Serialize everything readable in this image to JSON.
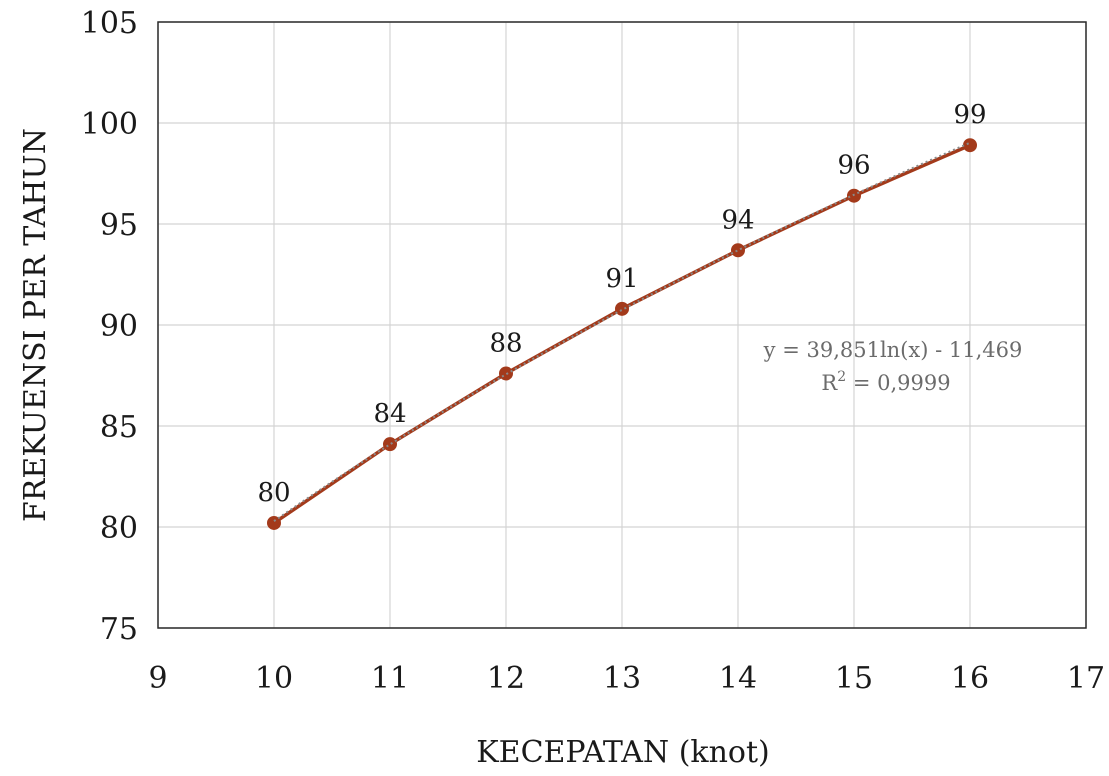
{
  "chart_data": {
    "type": "scatter",
    "title": "",
    "xlabel": "KECEPATAN (knot)",
    "ylabel": "FREKUENSI PER TAHUN",
    "xlim": [
      9,
      17
    ],
    "ylim": [
      75,
      105
    ],
    "xticks": [
      9,
      10,
      11,
      12,
      13,
      14,
      15,
      16,
      17
    ],
    "yticks": [
      75,
      80,
      85,
      90,
      95,
      100,
      105
    ],
    "grid": true,
    "series": [
      {
        "x": [
          10,
          11,
          12,
          13,
          14,
          15,
          16
        ],
        "y": [
          80.2,
          84.1,
          87.6,
          90.8,
          93.7,
          96.4,
          98.9
        ],
        "data_labels": [
          "80",
          "84",
          "88",
          "91",
          "94",
          "96",
          "99"
        ],
        "color": "#a33a1b",
        "markers": true,
        "line": "solid"
      }
    ],
    "trendline": {
      "type": "logarithmic",
      "a": 39.851,
      "b": -11.469,
      "equation": "y = 39,851ln(x) - 11,469",
      "r2_prefix": "R",
      "r2_sup": "2",
      "r2_value": " = 0,9999",
      "color": "#8a8a8a",
      "style": "dotted"
    }
  }
}
